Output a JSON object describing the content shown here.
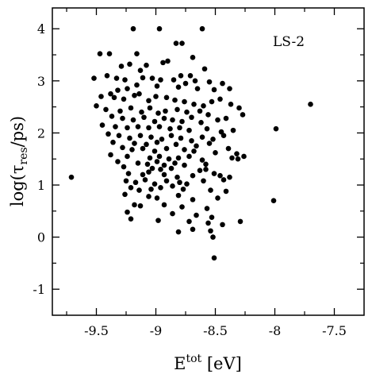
{
  "chart_data": {
    "type": "scatter",
    "annotation": "LS-2",
    "xlabel": {
      "main": "E",
      "sup": "tot",
      "unit": " [eV]"
    },
    "ylabel": {
      "pre": "log(τ",
      "sub": "res",
      "post": "/ps)"
    },
    "xlim": [
      -9.87,
      -7.25
    ],
    "ylim": [
      -1.5,
      4.4
    ],
    "xticks": [
      -9.5,
      -9,
      -8.5,
      -8,
      -7.5
    ],
    "xtick_labels": [
      "-9.5",
      "-9",
      "-8.5",
      "-8",
      "-7.5"
    ],
    "xminor": [
      -9.75,
      -9.25,
      -8.75,
      -8.25,
      -7.75
    ],
    "yticks": [
      -1,
      0,
      1,
      2,
      3,
      4
    ],
    "ytick_labels": [
      "-1",
      "0",
      "1",
      "2",
      "3",
      "4"
    ],
    "yminor": [
      -0.5,
      0.5,
      1.5,
      2.5,
      3.5
    ],
    "marker_color": "#000000",
    "points": [
      [
        -9.19,
        4.0
      ],
      [
        -8.97,
        4.0
      ],
      [
        -8.61,
        4.0
      ],
      [
        -9.47,
        3.52
      ],
      [
        -9.39,
        3.52
      ],
      [
        -9.16,
        3.52
      ],
      [
        -8.83,
        3.72
      ],
      [
        -8.78,
        3.72
      ],
      [
        -8.69,
        3.45
      ],
      [
        -8.9,
        3.38
      ],
      [
        -8.94,
        3.35
      ],
      [
        -9.08,
        3.3
      ],
      [
        -9.29,
        3.28
      ],
      [
        -9.22,
        3.32
      ],
      [
        -9.13,
        3.2
      ],
      [
        -8.59,
        3.23
      ],
      [
        -8.79,
        3.1
      ],
      [
        -8.71,
        3.1
      ],
      [
        -8.67,
        3.0
      ],
      [
        -9.52,
        3.05
      ],
      [
        -9.41,
        3.1
      ],
      [
        -9.33,
        3.05
      ],
      [
        -9.26,
        3.02
      ],
      [
        -9.11,
        3.06
      ],
      [
        -9.03,
        3.05
      ],
      [
        -8.96,
        3.02
      ],
      [
        -8.85,
        3.02
      ],
      [
        -8.75,
        2.95
      ],
      [
        -8.55,
        2.98
      ],
      [
        -8.44,
        2.95
      ],
      [
        -8.38,
        2.85
      ],
      [
        -8.51,
        2.83
      ],
      [
        -8.65,
        2.85
      ],
      [
        -8.81,
        2.88
      ],
      [
        -8.99,
        2.9
      ],
      [
        -9.16,
        2.92
      ],
      [
        -9.24,
        2.85
      ],
      [
        -9.32,
        2.82
      ],
      [
        -9.38,
        2.75
      ],
      [
        -9.46,
        2.7
      ],
      [
        -9.35,
        2.68
      ],
      [
        -9.27,
        2.65
      ],
      [
        -9.18,
        2.72
      ],
      [
        -9.14,
        2.75
      ],
      [
        -9.06,
        2.62
      ],
      [
        -9.0,
        2.7
      ],
      [
        -8.91,
        2.68
      ],
      [
        -8.84,
        2.63
      ],
      [
        -8.76,
        2.6
      ],
      [
        -8.68,
        2.55
      ],
      [
        -8.6,
        2.52
      ],
      [
        -8.53,
        2.6
      ],
      [
        -8.46,
        2.65
      ],
      [
        -8.37,
        2.55
      ],
      [
        -8.3,
        2.48
      ],
      [
        -7.7,
        2.55
      ],
      [
        -9.5,
        2.52
      ],
      [
        -9.42,
        2.45
      ],
      [
        -9.3,
        2.42
      ],
      [
        -9.21,
        2.48
      ],
      [
        -9.12,
        2.4
      ],
      [
        -9.05,
        2.48
      ],
      [
        -8.98,
        2.38
      ],
      [
        -8.92,
        2.42
      ],
      [
        -8.82,
        2.45
      ],
      [
        -8.74,
        2.4
      ],
      [
        -8.63,
        2.42
      ],
      [
        -8.56,
        2.35
      ],
      [
        -8.27,
        2.35
      ],
      [
        -9.37,
        2.32
      ],
      [
        -9.28,
        2.28
      ],
      [
        -9.19,
        2.25
      ],
      [
        -9.1,
        2.3
      ],
      [
        -9.01,
        2.22
      ],
      [
        -8.93,
        2.28
      ],
      [
        -8.86,
        2.25
      ],
      [
        -8.78,
        2.22
      ],
      [
        -8.7,
        2.3
      ],
      [
        -8.62,
        2.2
      ],
      [
        -8.48,
        2.25
      ],
      [
        -8.41,
        2.28
      ],
      [
        -9.45,
        2.15
      ],
      [
        -9.34,
        2.12
      ],
      [
        -9.24,
        2.1
      ],
      [
        -9.15,
        2.12
      ],
      [
        -9.06,
        2.1
      ],
      [
        -8.97,
        2.12
      ],
      [
        -8.88,
        2.08
      ],
      [
        -8.8,
        2.1
      ],
      [
        -8.72,
        2.05
      ],
      [
        -8.57,
        2.08
      ],
      [
        -8.45,
        2.02
      ],
      [
        -8.35,
        2.05
      ],
      [
        -7.99,
        2.08
      ],
      [
        -9.4,
        1.98
      ],
      [
        -9.31,
        1.95
      ],
      [
        -9.22,
        1.9
      ],
      [
        -9.13,
        1.95
      ],
      [
        -9.04,
        1.92
      ],
      [
        -8.95,
        1.88
      ],
      [
        -8.87,
        1.95
      ],
      [
        -8.79,
        1.9
      ],
      [
        -8.7,
        1.85
      ],
      [
        -8.61,
        1.92
      ],
      [
        -8.52,
        1.88
      ],
      [
        -8.43,
        1.95
      ],
      [
        -9.36,
        1.82
      ],
      [
        -9.18,
        1.8
      ],
      [
        -9.08,
        1.78
      ],
      [
        -8.99,
        1.82
      ],
      [
        -8.83,
        1.78
      ],
      [
        -8.66,
        1.75
      ],
      [
        -8.55,
        1.8
      ],
      [
        -9.28,
        1.72
      ],
      [
        -9.2,
        1.68
      ],
      [
        -9.11,
        1.7
      ],
      [
        -9.01,
        1.65
      ],
      [
        -8.91,
        1.7
      ],
      [
        -8.76,
        1.68
      ],
      [
        -8.68,
        1.65
      ],
      [
        -8.5,
        1.62
      ],
      [
        -8.39,
        1.7
      ],
      [
        -8.32,
        1.6
      ],
      [
        -9.38,
        1.58
      ],
      [
        -9.24,
        1.55
      ],
      [
        -9.05,
        1.52
      ],
      [
        -8.97,
        1.55
      ],
      [
        -8.89,
        1.5
      ],
      [
        -8.81,
        1.52
      ],
      [
        -8.72,
        1.55
      ],
      [
        -8.61,
        1.48
      ],
      [
        -8.36,
        1.52
      ],
      [
        -8.31,
        1.5
      ],
      [
        -8.26,
        1.55
      ],
      [
        -9.32,
        1.45
      ],
      [
        -9.15,
        1.42
      ],
      [
        -9.07,
        1.4
      ],
      [
        -8.99,
        1.45
      ],
      [
        -8.93,
        1.38
      ],
      [
        -8.84,
        1.42
      ],
      [
        -8.76,
        1.38
      ],
      [
        -8.58,
        1.4
      ],
      [
        -9.27,
        1.35
      ],
      [
        -9.03,
        1.32
      ],
      [
        -8.96,
        1.3
      ],
      [
        -8.87,
        1.32
      ],
      [
        -8.63,
        1.28
      ],
      [
        -8.58,
        1.3
      ],
      [
        -9.71,
        1.15
      ],
      [
        -9.23,
        1.22
      ],
      [
        -9.11,
        1.2
      ],
      [
        -9.06,
        1.25
      ],
      [
        -8.93,
        1.2
      ],
      [
        -8.82,
        1.15
      ],
      [
        -8.69,
        1.18
      ],
      [
        -8.51,
        1.22
      ],
      [
        -8.46,
        1.18
      ],
      [
        -8.38,
        1.15
      ],
      [
        -9.25,
        1.08
      ],
      [
        -9.17,
        1.05
      ],
      [
        -9.09,
        1.1
      ],
      [
        -9.01,
        1.02
      ],
      [
        -8.91,
        1.08
      ],
      [
        -8.8,
        1.05
      ],
      [
        -8.74,
        1.02
      ],
      [
        -8.6,
        1.08
      ],
      [
        -8.43,
        1.1
      ],
      [
        -9.21,
        0.95
      ],
      [
        -9.14,
        0.9
      ],
      [
        -9.04,
        0.92
      ],
      [
        -8.96,
        0.95
      ],
      [
        -8.86,
        0.98
      ],
      [
        -8.77,
        0.92
      ],
      [
        -8.54,
        0.9
      ],
      [
        -8.41,
        0.88
      ],
      [
        -9.26,
        0.82
      ],
      [
        -9.06,
        0.78
      ],
      [
        -8.99,
        0.75
      ],
      [
        -8.81,
        0.8
      ],
      [
        -8.69,
        0.72
      ],
      [
        -8.48,
        0.75
      ],
      [
        -8.01,
        0.7
      ],
      [
        -9.18,
        0.62
      ],
      [
        -9.13,
        0.6
      ],
      [
        -8.93,
        0.62
      ],
      [
        -8.78,
        0.58
      ],
      [
        -8.57,
        0.55
      ],
      [
        -9.24,
        0.48
      ],
      [
        -8.86,
        0.45
      ],
      [
        -8.66,
        0.42
      ],
      [
        -8.53,
        0.38
      ],
      [
        -9.21,
        0.35
      ],
      [
        -8.98,
        0.32
      ],
      [
        -8.72,
        0.3
      ],
      [
        -8.56,
        0.27
      ],
      [
        -8.44,
        0.24
      ],
      [
        -8.29,
        0.3
      ],
      [
        -8.81,
        0.1
      ],
      [
        -8.69,
        0.15
      ],
      [
        -8.54,
        0.12
      ],
      [
        -8.52,
        0.0
      ],
      [
        -8.51,
        -0.4
      ]
    ]
  }
}
